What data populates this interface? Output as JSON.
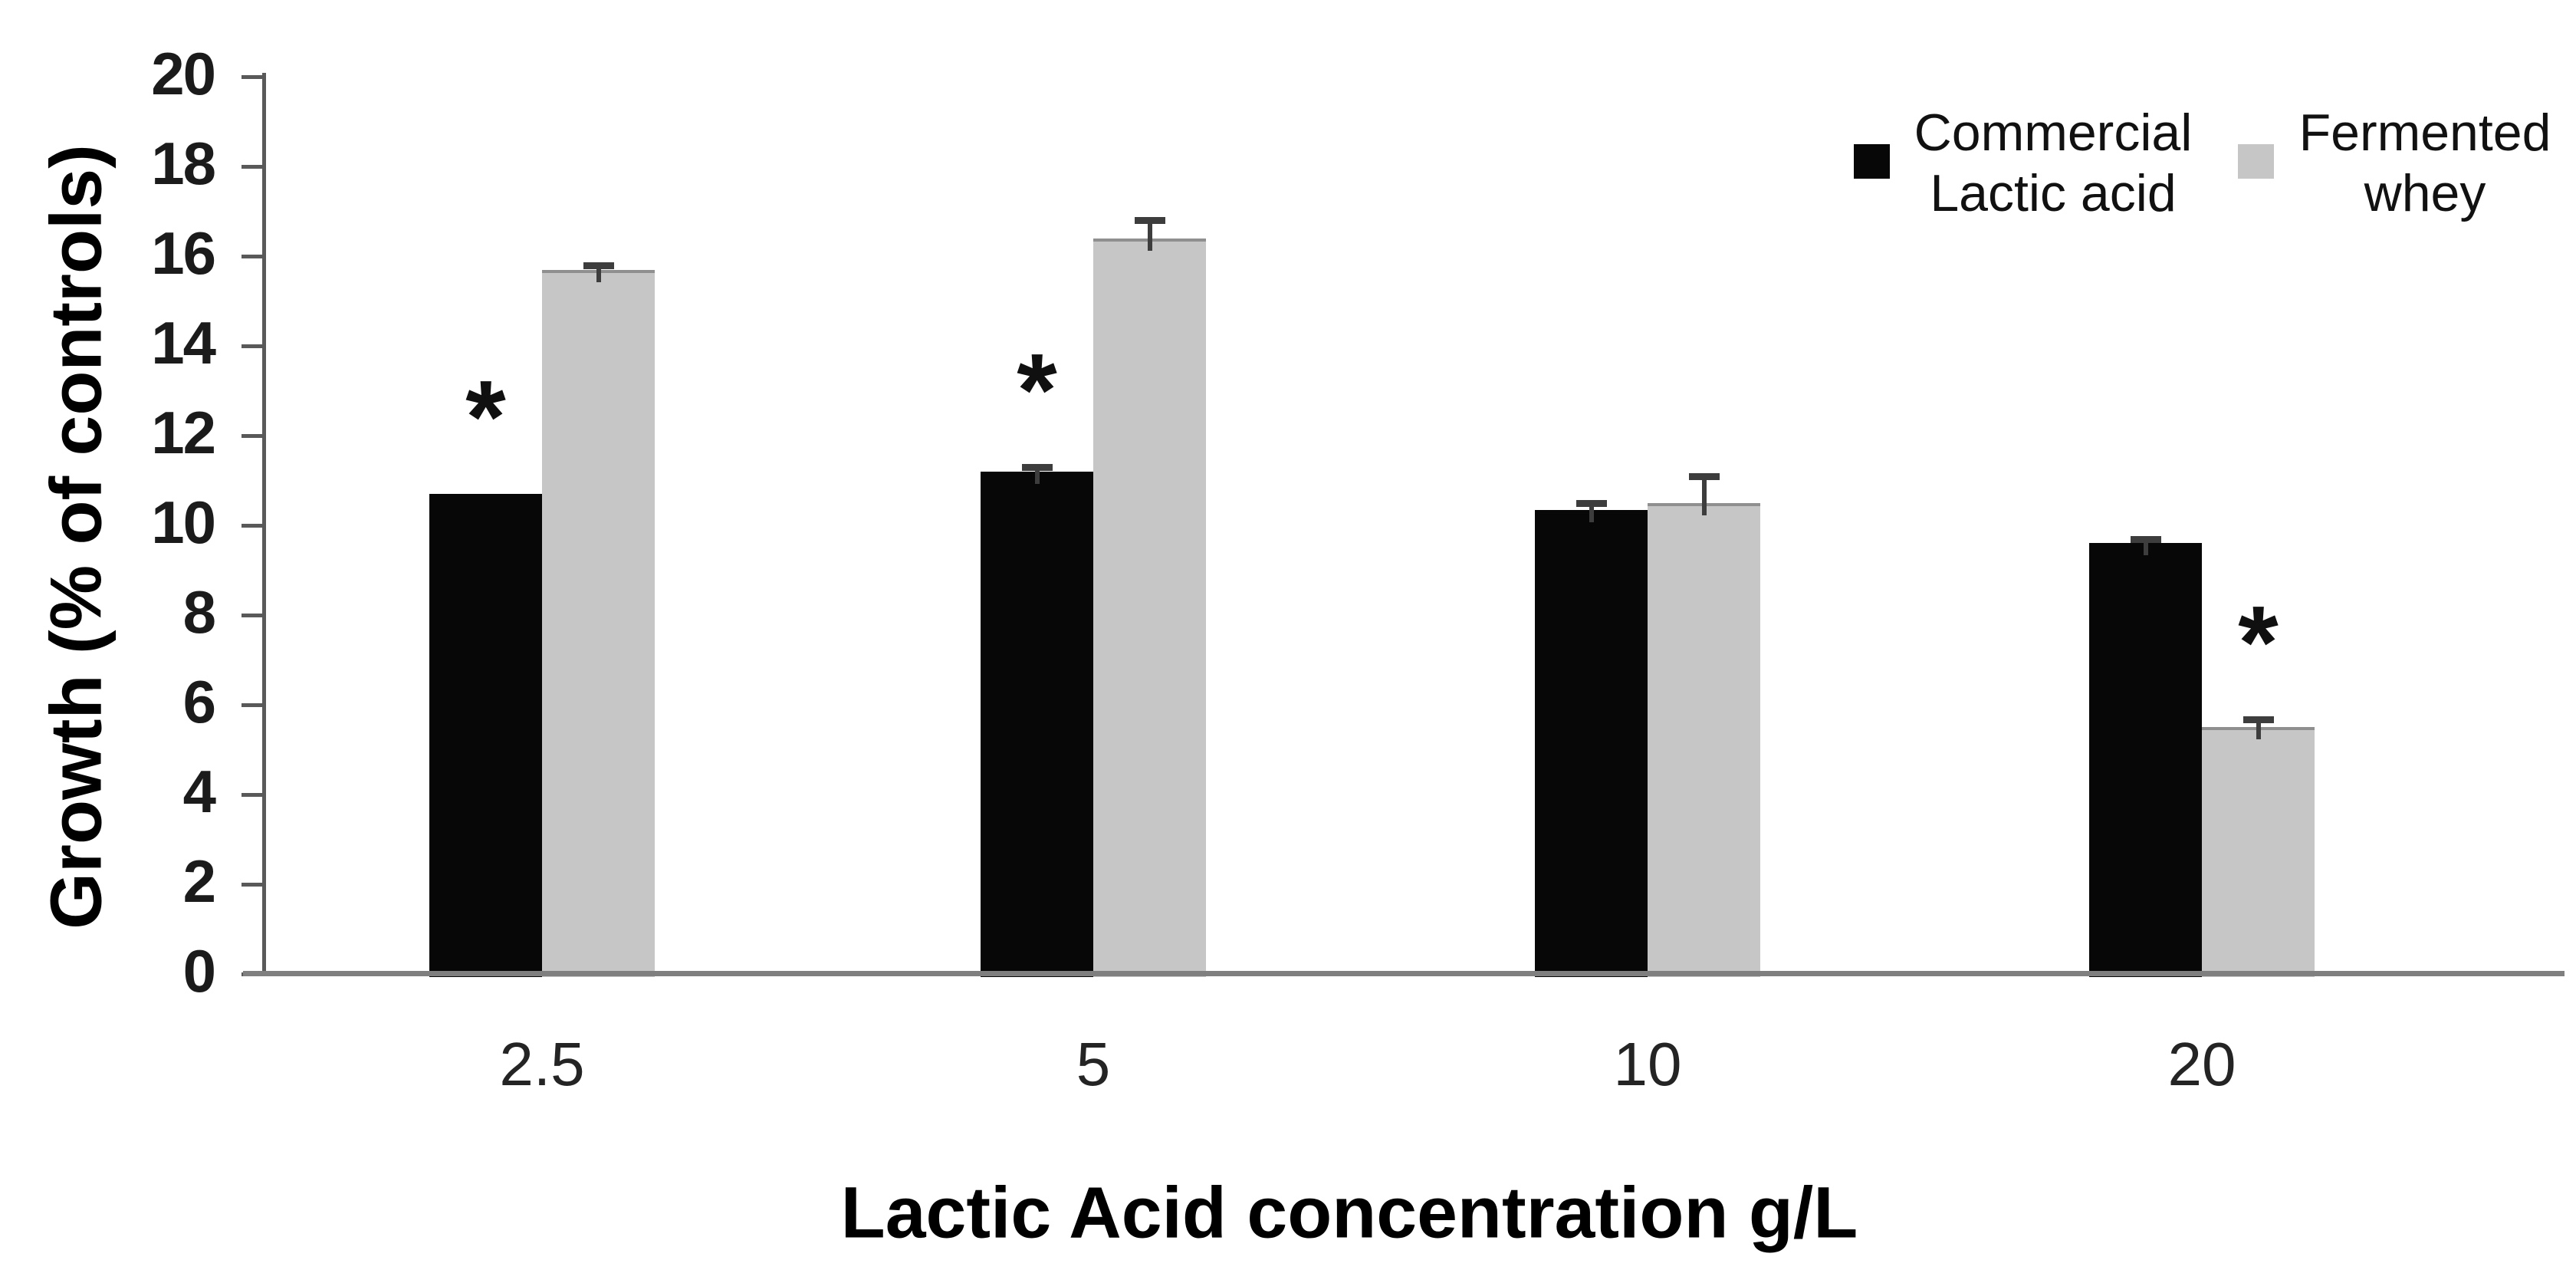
{
  "chart_data": {
    "type": "bar",
    "title": "",
    "xlabel": "Lactic Acid concentration g/L",
    "ylabel": "Growth (% of controls)",
    "categories": [
      "2.5",
      "5",
      "10",
      "20"
    ],
    "series": [
      {
        "name": "Commercial Lactic acid",
        "color": "#070707",
        "values": [
          10.7,
          11.2,
          10.35,
          9.6
        ],
        "errors_plus": [
          0,
          0.1,
          0.15,
          0.1
        ],
        "annotations": [
          "*",
          "*",
          "",
          ""
        ]
      },
      {
        "name": "Fermented whey",
        "color": "#c6c6c6",
        "values": [
          15.7,
          16.4,
          10.5,
          5.5
        ],
        "errors_plus": [
          0.1,
          0.4,
          0.6,
          0.17
        ],
        "annotations": [
          "",
          "",
          "",
          "*"
        ]
      }
    ],
    "ylim": [
      0,
      20
    ],
    "ytick_step": 2,
    "grid": false,
    "legend_position": "top-right",
    "significance_marker": "*"
  },
  "legend": {
    "items": [
      {
        "label": "Commercial\nLactic acid"
      },
      {
        "label": "Fermented\nwhey"
      }
    ]
  }
}
